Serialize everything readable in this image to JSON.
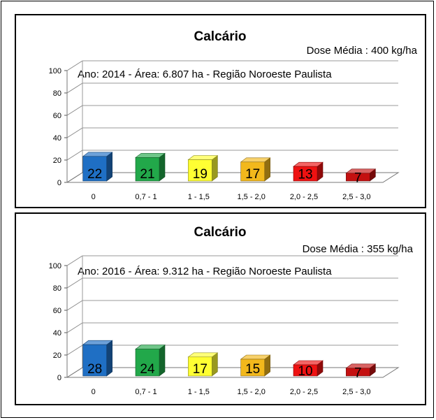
{
  "colors": {
    "categories": [
      "#1f6fc4",
      "#22a84a",
      "#ffff33",
      "#f2b81c",
      "#ee1111",
      "#c41010"
    ]
  },
  "chart_data": [
    {
      "type": "bar",
      "title": "Calcário",
      "dose": "Dose Média : 400 kg/ha",
      "subtitle": "Ano: 2014 - Área: 6.807 ha - Região Noroeste Paulista",
      "categories": [
        "0",
        "0,7 - 1",
        "1 - 1,5",
        "1,5 - 2,0",
        "2,0 - 2,5",
        "2,5 - 3,0"
      ],
      "values": [
        22,
        21,
        19,
        17,
        13,
        7
      ],
      "yticks": [
        "0",
        "20",
        "40",
        "60",
        "80",
        "100"
      ],
      "ylim": [
        0,
        100
      ],
      "grid": true
    },
    {
      "type": "bar",
      "title": "Calcário",
      "dose": "Dose Média : 355 kg/ha",
      "subtitle": "Ano: 2016 - Área: 9.312 ha - Região Noroeste Paulista",
      "categories": [
        "0",
        "0,7 - 1",
        "1 - 1,5",
        "1,5 - 2,0",
        "2,0 - 2,5",
        "2,5 - 3,0"
      ],
      "values": [
        28,
        24,
        17,
        15,
        10,
        7
      ],
      "yticks": [
        "0",
        "20",
        "40",
        "60",
        "80",
        "100"
      ],
      "ylim": [
        0,
        100
      ],
      "grid": true
    }
  ]
}
